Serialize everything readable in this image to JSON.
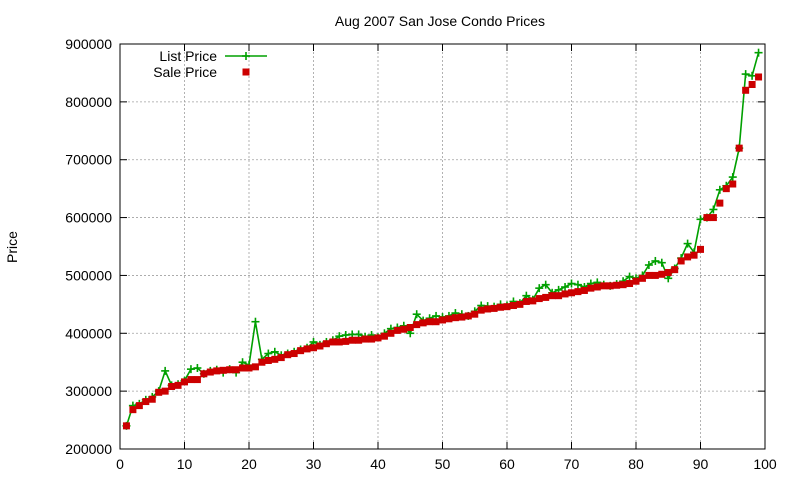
{
  "chart_data": {
    "type": "line",
    "title": "Aug 2007 San Jose Condo Prices",
    "xlabel": "",
    "ylabel": "Price",
    "xlim": [
      0,
      100
    ],
    "ylim": [
      200000,
      900000
    ],
    "xticks": [
      0,
      10,
      20,
      30,
      40,
      50,
      60,
      70,
      80,
      90,
      100
    ],
    "yticks": [
      200000,
      300000,
      400000,
      500000,
      600000,
      700000,
      800000,
      900000
    ],
    "grid": true,
    "legend_position": "top-left",
    "x": [
      1,
      2,
      3,
      4,
      5,
      6,
      7,
      8,
      9,
      10,
      11,
      12,
      13,
      14,
      15,
      16,
      17,
      18,
      19,
      20,
      21,
      22,
      23,
      24,
      25,
      26,
      27,
      28,
      29,
      30,
      31,
      32,
      33,
      34,
      35,
      36,
      37,
      38,
      39,
      40,
      41,
      42,
      43,
      44,
      45,
      46,
      47,
      48,
      49,
      50,
      51,
      52,
      53,
      54,
      55,
      56,
      57,
      58,
      59,
      60,
      61,
      62,
      63,
      64,
      65,
      66,
      67,
      68,
      69,
      70,
      71,
      72,
      73,
      74,
      75,
      76,
      77,
      78,
      79,
      80,
      81,
      82,
      83,
      84,
      85,
      86,
      87,
      88,
      89,
      90,
      91,
      92,
      93,
      94,
      95,
      96,
      97,
      98,
      99
    ],
    "series": [
      {
        "name": "List Price",
        "color": "#00a000",
        "marker": "plus",
        "values": [
          240000,
          275000,
          278000,
          285000,
          290000,
          300000,
          335000,
          310000,
          312000,
          318000,
          338000,
          340000,
          330000,
          335000,
          337000,
          332000,
          338000,
          332000,
          350000,
          345000,
          420000,
          355000,
          365000,
          368000,
          362000,
          365000,
          368000,
          372000,
          375000,
          385000,
          380000,
          385000,
          388000,
          395000,
          397000,
          398000,
          398000,
          394000,
          397000,
          393000,
          400000,
          408000,
          410000,
          413000,
          400000,
          433000,
          422000,
          426000,
          430000,
          428000,
          430000,
          435000,
          433000,
          430000,
          438000,
          448000,
          447000,
          446000,
          450000,
          448000,
          455000,
          452000,
          465000,
          458000,
          478000,
          484000,
          470000,
          475000,
          480000,
          486000,
          484000,
          480000,
          486000,
          488000,
          484000,
          482000,
          485000,
          490000,
          498000,
          495000,
          500000,
          518000,
          525000,
          522000,
          495000,
          512000,
          530000,
          555000,
          540000,
          597000,
          600000,
          614000,
          648000,
          655000,
          670000,
          720000,
          848000,
          845000,
          885000
        ]
      },
      {
        "name": "Sale Price",
        "color": "#cc0000",
        "marker": "square",
        "values": [
          240000,
          268000,
          275000,
          282000,
          286000,
          298000,
          300000,
          308000,
          310000,
          316000,
          320000,
          320000,
          330000,
          333000,
          335000,
          336000,
          337000,
          337000,
          340000,
          340000,
          342000,
          350000,
          353000,
          355000,
          358000,
          363000,
          365000,
          370000,
          373000,
          375000,
          378000,
          382000,
          385000,
          385000,
          386000,
          388000,
          388000,
          390000,
          390000,
          392000,
          395000,
          400000,
          405000,
          407000,
          410000,
          415000,
          418000,
          420000,
          420000,
          423000,
          425000,
          427000,
          428000,
          430000,
          433000,
          440000,
          442000,
          443000,
          445000,
          446000,
          448000,
          450000,
          455000,
          456000,
          460000,
          462000,
          465000,
          465000,
          468000,
          470000,
          472000,
          474000,
          478000,
          480000,
          482000,
          482000,
          483000,
          484000,
          486000,
          490000,
          495000,
          500000,
          500000,
          502000,
          505000,
          510000,
          525000,
          532000,
          535000,
          545000,
          600000,
          600000,
          625000,
          650000,
          658000,
          720000,
          820000,
          830000,
          843000
        ]
      }
    ]
  }
}
